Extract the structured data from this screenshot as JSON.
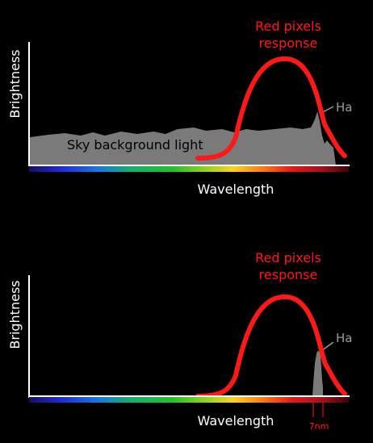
{
  "colors": {
    "background": "#000000",
    "curve": "#ff1a1a",
    "sky_fill": "#7a7a7a",
    "axis": "#ffffff",
    "ha_label": "#9a9a9a"
  },
  "top_panel": {
    "ylabel": "Brightness",
    "xlabel": "Wavelength",
    "curve_label_line1": "Red pixels",
    "curve_label_line2": "response",
    "ha_label": "Ha",
    "sky_label": "Sky background light"
  },
  "bottom_panel": {
    "ylabel": "Brightness",
    "xlabel": "Wavelength",
    "curve_label_line1": "Red pixels",
    "curve_label_line2": "response",
    "ha_label": "Ha",
    "bandwidth_label": "7nm"
  }
}
